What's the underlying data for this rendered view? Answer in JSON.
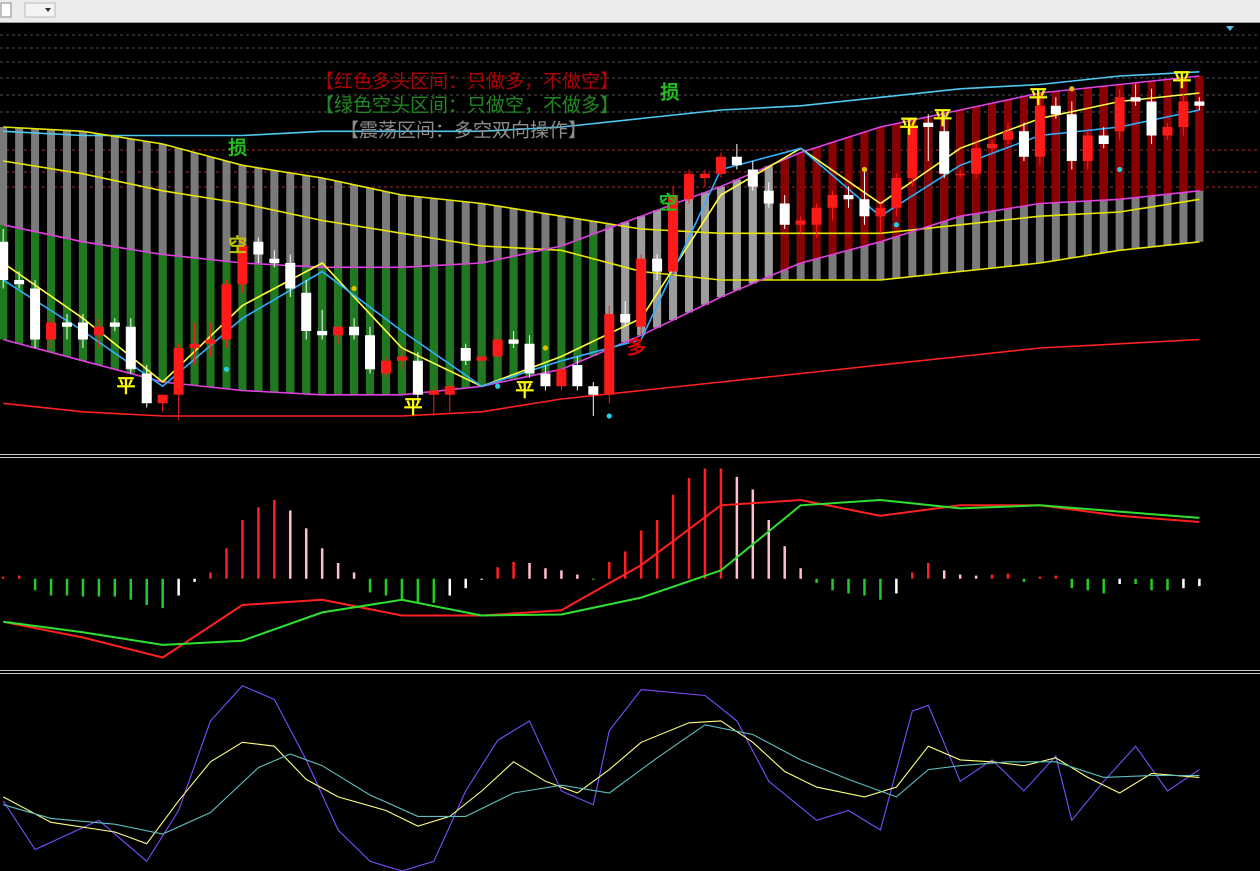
{
  "chart_data": [
    {
      "type": "candlestick",
      "xlim": [
        -0.2,
        78.8
      ],
      "ylim": [
        0,
        100
      ],
      "up_color": "#ff1a1a",
      "down_color": "#ffffff",
      "open": [
        49,
        40,
        38,
        26,
        30,
        30,
        27,
        30,
        29,
        18,
        11,
        13,
        24,
        25,
        26,
        39,
        49,
        45,
        44,
        37,
        28,
        27,
        29,
        27,
        18,
        21,
        21,
        13,
        13,
        24,
        21,
        22,
        26,
        25,
        18,
        15,
        20,
        15,
        13,
        32,
        29,
        45,
        42,
        59,
        64,
        65,
        69,
        66,
        61,
        58,
        53,
        53,
        57,
        60,
        59,
        55,
        57,
        64,
        77,
        75,
        65,
        65,
        71,
        73,
        75,
        69,
        81,
        79,
        68,
        74,
        75,
        83,
        82,
        74,
        76,
        82
      ],
      "high": [
        52,
        42,
        40,
        31,
        32,
        32,
        31,
        31,
        31,
        20,
        13,
        25,
        30,
        30,
        40,
        50,
        50,
        47,
        46,
        40,
        33,
        29,
        31,
        29,
        22,
        24,
        23,
        15,
        16,
        25,
        22,
        29,
        28,
        27,
        20,
        21,
        22,
        16,
        34,
        35,
        46,
        46,
        62,
        66,
        66,
        70,
        72,
        68,
        63,
        60,
        55,
        58,
        61,
        62,
        66,
        58,
        65,
        78,
        79,
        79,
        66,
        73,
        73,
        77,
        77,
        84,
        83,
        82,
        75,
        76,
        85,
        86,
        85,
        77,
        84,
        83
      ],
      "low": [
        38,
        38,
        24,
        24,
        26,
        24,
        24,
        28,
        18,
        10,
        9,
        7,
        20,
        22,
        24,
        37,
        44,
        43,
        36,
        26,
        26,
        25,
        26,
        18,
        17,
        19,
        11,
        8,
        9,
        20,
        19,
        20,
        24,
        17,
        14,
        14,
        14,
        8,
        11,
        29,
        27,
        40,
        41,
        58,
        62,
        64,
        66,
        61,
        57,
        52,
        51,
        50,
        54,
        57,
        53,
        51,
        55,
        62,
        68,
        64,
        64,
        64,
        70,
        72,
        68,
        67,
        78,
        66,
        66,
        71,
        73,
        81,
        72,
        73,
        74,
        80
      ],
      "close": [
        40,
        39,
        26,
        30,
        29,
        26,
        29,
        29,
        19,
        11,
        13,
        24,
        25,
        26,
        39,
        48,
        46,
        44,
        38,
        28,
        27,
        29,
        27,
        19,
        21,
        22,
        13,
        14,
        15,
        21,
        22,
        26,
        25,
        18,
        15,
        19,
        15,
        13,
        32,
        30,
        45,
        42,
        60,
        65,
        65,
        69,
        67,
        62,
        58,
        53,
        54,
        57,
        60,
        59,
        55,
        57,
        64,
        76,
        76,
        65,
        65,
        71,
        72,
        75,
        69,
        81,
        79,
        68,
        74,
        72,
        83,
        82,
        74,
        76,
        82,
        81
      ],
      "zones": [
        {
          "from": 0,
          "to": 37,
          "color": "#1f7a1f"
        },
        {
          "from": 38,
          "to": 48,
          "color": "#9c9c9c"
        },
        {
          "from": 49,
          "to": 75,
          "color": "#8b0000"
        }
      ],
      "shade_color": "#7a7a7a",
      "lines": [
        {
          "color": "#4ec9f0",
          "x": [
            0,
            5,
            10,
            15,
            20,
            25,
            30,
            35,
            40,
            45,
            50,
            55,
            60,
            65,
            70,
            75
          ],
          "values": [
            75,
            74,
            74,
            74,
            75,
            75,
            75,
            76,
            78,
            80,
            81,
            83,
            85,
            86,
            88,
            89
          ]
        },
        {
          "color": "#e6e600",
          "x": [
            0,
            5,
            10,
            15,
            20,
            25,
            30,
            35,
            40,
            45,
            50,
            55,
            60,
            65,
            70,
            75
          ],
          "values": [
            76,
            75,
            72,
            67,
            64,
            60,
            58,
            55,
            52,
            51,
            51,
            51,
            53,
            55,
            56,
            59
          ]
        },
        {
          "color": "#e6e600",
          "x": [
            0,
            5,
            10,
            15,
            20,
            25,
            30,
            35,
            40,
            45,
            50,
            55,
            60,
            65,
            70,
            75
          ],
          "values": [
            68,
            65,
            61,
            58,
            54,
            51,
            48,
            47,
            42,
            40,
            40,
            40,
            42,
            44,
            47,
            49
          ]
        },
        {
          "color": "#e040e0",
          "x": [
            0,
            5,
            10,
            15,
            20,
            25,
            30,
            35,
            40,
            45,
            50,
            55,
            60,
            65,
            70,
            75
          ],
          "values": [
            53,
            49,
            46,
            44,
            43,
            43,
            44,
            48,
            55,
            62,
            70,
            76,
            80,
            84,
            86,
            88
          ]
        },
        {
          "color": "#e040e0",
          "x": [
            0,
            5,
            10,
            15,
            20,
            25,
            30,
            35,
            40,
            45,
            50,
            55,
            60,
            65,
            70,
            75
          ],
          "values": [
            26,
            21,
            16,
            14,
            13,
            13,
            15,
            19,
            27,
            36,
            44,
            49,
            55,
            58,
            59,
            61
          ]
        },
        {
          "color": "#ff2020",
          "x": [
            0,
            5,
            10,
            15,
            20,
            25,
            30,
            35,
            40,
            45,
            50,
            55,
            60,
            65,
            70,
            75
          ],
          "values": [
            11,
            9,
            8,
            8,
            8,
            8,
            9,
            12,
            14,
            16,
            18,
            20,
            22,
            24,
            25,
            26
          ]
        },
        {
          "color": "#ffff40",
          "x": [
            0,
            5,
            10,
            15,
            20,
            25,
            30,
            35,
            40,
            45,
            50,
            55,
            60,
            65,
            70,
            75
          ],
          "values": [
            44,
            31,
            16,
            34,
            44,
            24,
            15,
            22,
            31,
            60,
            71,
            58,
            71,
            78,
            82,
            84
          ]
        },
        {
          "color": "#30b0ff",
          "x": [
            0,
            5,
            10,
            15,
            20,
            25,
            30,
            35,
            40,
            45,
            50,
            55,
            60,
            65,
            70,
            75
          ],
          "values": [
            40,
            28,
            15,
            31,
            42,
            28,
            15,
            21,
            26,
            66,
            71,
            55,
            67,
            74,
            76,
            80
          ]
        }
      ],
      "dots": [
        {
          "x": 14,
          "y": 19,
          "color": "#20d0e0"
        },
        {
          "x": 31,
          "y": 15,
          "color": "#20d0e0"
        },
        {
          "x": 38,
          "y": 8,
          "color": "#20d0e0"
        },
        {
          "x": 56,
          "y": 53,
          "color": "#20d0e0"
        },
        {
          "x": 70,
          "y": 66,
          "color": "#20d0e0"
        },
        {
          "x": 22,
          "y": 38,
          "color": "#e0c000"
        },
        {
          "x": 34,
          "y": 24,
          "color": "#e0c000"
        },
        {
          "x": 54,
          "y": 66,
          "color": "#e0c000"
        },
        {
          "x": 67,
          "y": 85,
          "color": "#e0c000"
        }
      ],
      "signals": [
        {
          "text": "平",
          "x": 7.7,
          "y": 15,
          "color": "#ffff00"
        },
        {
          "text": "平",
          "x": 25.7,
          "y": 10,
          "color": "#ffff00"
        },
        {
          "text": "平",
          "x": 32.7,
          "y": 14,
          "color": "#ffff00"
        },
        {
          "text": "平",
          "x": 56.8,
          "y": 76,
          "color": "#ffff00"
        },
        {
          "text": "平",
          "x": 58.9,
          "y": 78,
          "color": "#ffff00"
        },
        {
          "text": "平",
          "x": 64.9,
          "y": 83,
          "color": "#ffff00"
        },
        {
          "text": "平",
          "x": 73.9,
          "y": 87,
          "color": "#ffff00"
        },
        {
          "text": "空",
          "x": 14.7,
          "y": 48,
          "color": "#b8c800"
        },
        {
          "text": "空",
          "x": 41.7,
          "y": 58,
          "color": "#20c020"
        },
        {
          "text": "损",
          "x": 14.7,
          "y": 71,
          "color": "#20c020"
        },
        {
          "text": "损",
          "x": 41.8,
          "y": 84,
          "color": "#20c020"
        },
        {
          "text": "多",
          "x": 39.7,
          "y": 24,
          "color": "#e00000"
        }
      ],
      "notes": [
        {
          "text": "【红色多头区间：只做多，不做空】",
          "color": "#b00000"
        },
        {
          "text": "【绿色空头区间：只做空，不做多】",
          "color": "#1f8a1f"
        },
        {
          "text": "【震荡区间：多空双向操作】",
          "color": "#8c8c8c"
        }
      ]
    },
    {
      "type": "macd",
      "xlim": [
        -0.2,
        78.8
      ],
      "ylim": [
        -8.5,
        11.5
      ],
      "histogram": [
        0.2,
        0.3,
        -1.1,
        -1.6,
        -1.6,
        -1.7,
        -1.7,
        -1.7,
        -2,
        -2.5,
        -2.8,
        -1.6,
        -0.3,
        0.6,
        2.9,
        5.6,
        6.8,
        7.5,
        6.5,
        4.8,
        2.9,
        1.5,
        0.6,
        -1.3,
        -1.6,
        -2,
        -2.3,
        -2.3,
        -1.6,
        -0.9,
        -0.1,
        1.1,
        1.6,
        1.5,
        1,
        0.8,
        0.4,
        -0.1,
        1.6,
        2.6,
        4.6,
        5.6,
        8,
        9.6,
        10.5,
        10.5,
        9.7,
        8.5,
        5.6,
        3.1,
        1,
        -0.4,
        -1.1,
        -1.4,
        -1.6,
        -2,
        -1.4,
        0.6,
        1.5,
        0.8,
        0.4,
        0.3,
        0.4,
        0.5,
        -0.3,
        0.2,
        0.3,
        -0.9,
        -1.1,
        -1.4,
        -0.5,
        -0.5,
        -1.1,
        -1.1,
        -0.9,
        -0.7
      ],
      "bar_colors": [
        "#ff2020",
        "#ffc0cb",
        "#22cc22",
        "#ffffff"
      ],
      "lines": [
        {
          "color": "#ff2020",
          "x": [
            0,
            5,
            10,
            15,
            20,
            25,
            30,
            35,
            40,
            45,
            50,
            55,
            60,
            65,
            70,
            75
          ],
          "values": [
            -4.1,
            -5.6,
            -7.5,
            -2.5,
            -2,
            -3.5,
            -3.5,
            -3,
            1.3,
            7,
            7.5,
            6,
            7,
            7,
            6,
            5.4
          ]
        },
        {
          "color": "#30e030",
          "x": [
            0,
            5,
            10,
            15,
            20,
            25,
            30,
            35,
            40,
            45,
            50,
            55,
            60,
            65,
            70,
            75
          ],
          "values": [
            -4.1,
            -5.1,
            -6.3,
            -5.9,
            -3.2,
            -2,
            -3.5,
            -3.4,
            -1.8,
            0.8,
            7,
            7.5,
            6.7,
            7,
            6.4,
            5.8
          ]
        }
      ]
    },
    {
      "type": "stochastic",
      "xlim": [
        -0.2,
        78.8
      ],
      "ylim": [
        0,
        100
      ],
      "lines": [
        {
          "color": "#7d4dff",
          "x": [
            0,
            2,
            6,
            9,
            11,
            13,
            15,
            17,
            19,
            21,
            23,
            25,
            27,
            29,
            31,
            33,
            35,
            37,
            38,
            40,
            44,
            46,
            48,
            51,
            53,
            55,
            57,
            58,
            60,
            62,
            64,
            66,
            67,
            69,
            71,
            73,
            75
          ],
          "values": [
            36,
            11,
            26,
            5,
            31,
            77,
            95,
            88,
            57,
            21,
            5,
            0,
            5,
            41,
            67,
            77,
            41,
            34,
            72,
            93,
            90,
            77,
            46,
            26,
            31,
            21,
            82,
            85,
            46,
            57,
            41,
            59,
            26,
            46,
            64,
            41,
            52
          ]
        },
        {
          "color": "#ffff80",
          "x": [
            0,
            3,
            7,
            9,
            11,
            13,
            15,
            17,
            19,
            21,
            24,
            26,
            28,
            30,
            32,
            34,
            36,
            38,
            40,
            43,
            45,
            47,
            49,
            51,
            54,
            56,
            58,
            60,
            62,
            64,
            66,
            68,
            70,
            72,
            75
          ],
          "values": [
            38,
            25,
            20,
            14,
            36,
            56,
            66,
            64,
            47,
            38,
            31,
            23,
            28,
            41,
            56,
            46,
            40,
            52,
            66,
            76,
            77,
            66,
            51,
            43,
            38,
            43,
            64,
            57,
            56,
            54,
            58,
            48,
            40,
            50,
            48
          ]
        },
        {
          "color": "#5fbfbf",
          "x": [
            0,
            3,
            7,
            10,
            13,
            16,
            18,
            20,
            23,
            26,
            29,
            32,
            35,
            38,
            41,
            44,
            47,
            50,
            53,
            56,
            58,
            60,
            63,
            66,
            69,
            72,
            75
          ],
          "values": [
            34,
            27,
            24,
            19,
            30,
            53,
            60,
            54,
            39,
            28,
            28,
            40,
            44,
            40,
            58,
            75,
            70,
            57,
            47,
            38,
            52,
            54,
            56,
            56,
            48,
            49,
            49
          ]
        }
      ]
    }
  ]
}
